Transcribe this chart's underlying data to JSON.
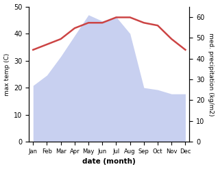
{
  "months": [
    "Jan",
    "Feb",
    "Mar",
    "Apr",
    "May",
    "Jun",
    "Jul",
    "Aug",
    "Sep",
    "Oct",
    "Nov",
    "Dec"
  ],
  "month_positions": [
    0,
    1,
    2,
    3,
    4,
    5,
    6,
    7,
    8,
    9,
    10,
    11
  ],
  "temperature": [
    34,
    36,
    38,
    42,
    44,
    44,
    46,
    46,
    44,
    43,
    38,
    34
  ],
  "precipitation": [
    27,
    32,
    41,
    51,
    61,
    58,
    60,
    52,
    26,
    25,
    23,
    23
  ],
  "temp_ylim": [
    0,
    50
  ],
  "precip_ylim": [
    0,
    65
  ],
  "temp_color": "#cc4444",
  "precip_fill_color": "#c8d0f0",
  "background_color": "#ffffff",
  "xlabel": "date (month)",
  "ylabel_left": "max temp (C)",
  "ylabel_right": "med. precipitation (kg/m2)",
  "temp_linewidth": 1.8,
  "fig_width": 3.18,
  "fig_height": 2.47,
  "dpi": 100
}
